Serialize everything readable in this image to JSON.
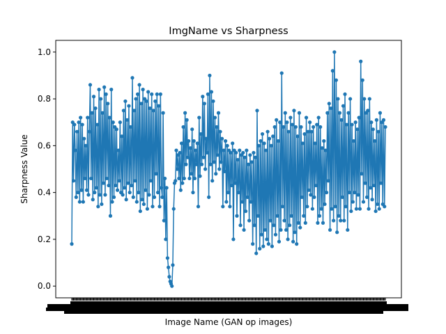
{
  "chart_data": {
    "type": "line",
    "title": "ImgName vs Sharpness",
    "xlabel": "Image Name (GAN op images)",
    "ylabel": "Sharpness Value",
    "ylim": [
      -0.05,
      1.05
    ],
    "yticks": [
      0.0,
      0.2,
      0.4,
      0.6,
      0.8,
      1.0
    ],
    "ytick_labels": [
      "0.0",
      "0.2",
      "0.4",
      "0.6",
      "0.8",
      "1.0"
    ],
    "x_tick_labels_note": "category tick labels rendered as overlapping illegible marks",
    "grid": false,
    "legend": "none",
    "series": [
      {
        "color": "#1f77b4",
        "marker": "circle",
        "values": [
          0.18,
          0.7,
          0.45,
          0.69,
          0.58,
          0.38,
          0.66,
          0.4,
          0.7,
          0.36,
          0.72,
          0.41,
          0.69,
          0.36,
          0.63,
          0.46,
          0.6,
          0.41,
          0.72,
          0.39,
          0.66,
          0.86,
          0.46,
          0.74,
          0.37,
          0.81,
          0.4,
          0.76,
          0.42,
          0.69,
          0.34,
          0.84,
          0.39,
          0.8,
          0.35,
          0.74,
          0.44,
          0.85,
          0.39,
          0.82,
          0.46,
          0.78,
          0.43,
          0.72,
          0.3,
          0.84,
          0.36,
          0.7,
          0.38,
          0.68,
          0.43,
          0.67,
          0.41,
          0.58,
          0.45,
          0.7,
          0.4,
          0.64,
          0.39,
          0.75,
          0.42,
          0.79,
          0.37,
          0.71,
          0.44,
          0.77,
          0.4,
          0.68,
          0.43,
          0.89,
          0.38,
          0.75,
          0.45,
          0.8,
          0.36,
          0.82,
          0.4,
          0.86,
          0.32,
          0.78,
          0.37,
          0.84,
          0.35,
          0.8,
          0.41,
          0.79,
          0.33,
          0.83,
          0.39,
          0.76,
          0.45,
          0.82,
          0.34,
          0.75,
          0.38,
          0.79,
          0.48,
          0.82,
          0.4,
          0.77,
          0.34,
          0.82,
          0.42,
          0.38,
          0.74,
          0.28,
          0.46,
          0.2,
          0.42,
          0.12,
          0.08,
          0.04,
          0.02,
          0.01,
          0.0,
          0.09,
          0.33,
          0.44,
          0.45,
          0.58,
          0.5,
          0.56,
          0.46,
          0.57,
          0.41,
          0.61,
          0.44,
          0.68,
          0.46,
          0.74,
          0.52,
          0.71,
          0.55,
          0.62,
          0.46,
          0.59,
          0.48,
          0.67,
          0.4,
          0.62,
          0.46,
          0.58,
          0.52,
          0.61,
          0.34,
          0.72,
          0.47,
          0.65,
          0.52,
          0.81,
          0.55,
          0.78,
          0.5,
          0.63,
          0.57,
          0.82,
          0.38,
          0.9,
          0.52,
          0.83,
          0.45,
          0.79,
          0.53,
          0.72,
          0.48,
          0.68,
          0.56,
          0.74,
          0.5,
          0.66,
          0.53,
          0.63,
          0.34,
          0.58,
          0.49,
          0.62,
          0.36,
          0.6,
          0.4,
          0.58,
          0.34,
          0.57,
          0.43,
          0.61,
          0.2,
          0.58,
          0.44,
          0.57,
          0.3,
          0.54,
          0.4,
          0.58,
          0.26,
          0.56,
          0.36,
          0.57,
          0.24,
          0.55,
          0.32,
          0.58,
          0.38,
          0.52,
          0.28,
          0.56,
          0.36,
          0.53,
          0.18,
          0.57,
          0.26,
          0.55,
          0.14,
          0.75,
          0.3,
          0.6,
          0.16,
          0.62,
          0.22,
          0.65,
          0.17,
          0.61,
          0.24,
          0.58,
          0.2,
          0.66,
          0.18,
          0.63,
          0.28,
          0.6,
          0.17,
          0.64,
          0.26,
          0.68,
          0.22,
          0.71,
          0.3,
          0.62,
          0.19,
          0.7,
          0.24,
          0.91,
          0.34,
          0.68,
          0.28,
          0.74,
          0.24,
          0.7,
          0.2,
          0.66,
          0.26,
          0.72,
          0.3,
          0.69,
          0.19,
          0.75,
          0.23,
          0.68,
          0.18,
          0.64,
          0.27,
          0.74,
          0.25,
          0.68,
          0.38,
          0.61,
          0.3,
          0.65,
          0.27,
          0.72,
          0.34,
          0.66,
          0.41,
          0.7,
          0.39,
          0.66,
          0.33,
          0.68,
          0.38,
          0.61,
          0.43,
          0.69,
          0.27,
          0.72,
          0.3,
          0.68,
          0.33,
          0.59,
          0.27,
          0.62,
          0.35,
          0.58,
          0.4,
          0.74,
          0.45,
          0.78,
          0.24,
          0.76,
          0.33,
          0.92,
          0.28,
          1.0,
          0.34,
          0.88,
          0.23,
          0.8,
          0.3,
          0.74,
          0.28,
          0.71,
          0.38,
          0.77,
          0.28,
          0.82,
          0.34,
          0.69,
          0.24,
          0.74,
          0.4,
          0.8,
          0.32,
          0.69,
          0.36,
          0.62,
          0.4,
          0.7,
          0.33,
          0.67,
          0.39,
          0.72,
          0.33,
          0.96,
          0.48,
          0.88,
          0.36,
          0.8,
          0.44,
          0.74,
          0.38,
          0.75,
          0.33,
          0.8,
          0.42,
          0.7,
          0.37,
          0.67,
          0.43,
          0.62,
          0.32,
          0.71,
          0.35,
          0.66,
          0.33,
          0.74,
          0.44,
          0.7,
          0.35,
          0.71,
          0.34,
          0.68
        ]
      }
    ]
  }
}
